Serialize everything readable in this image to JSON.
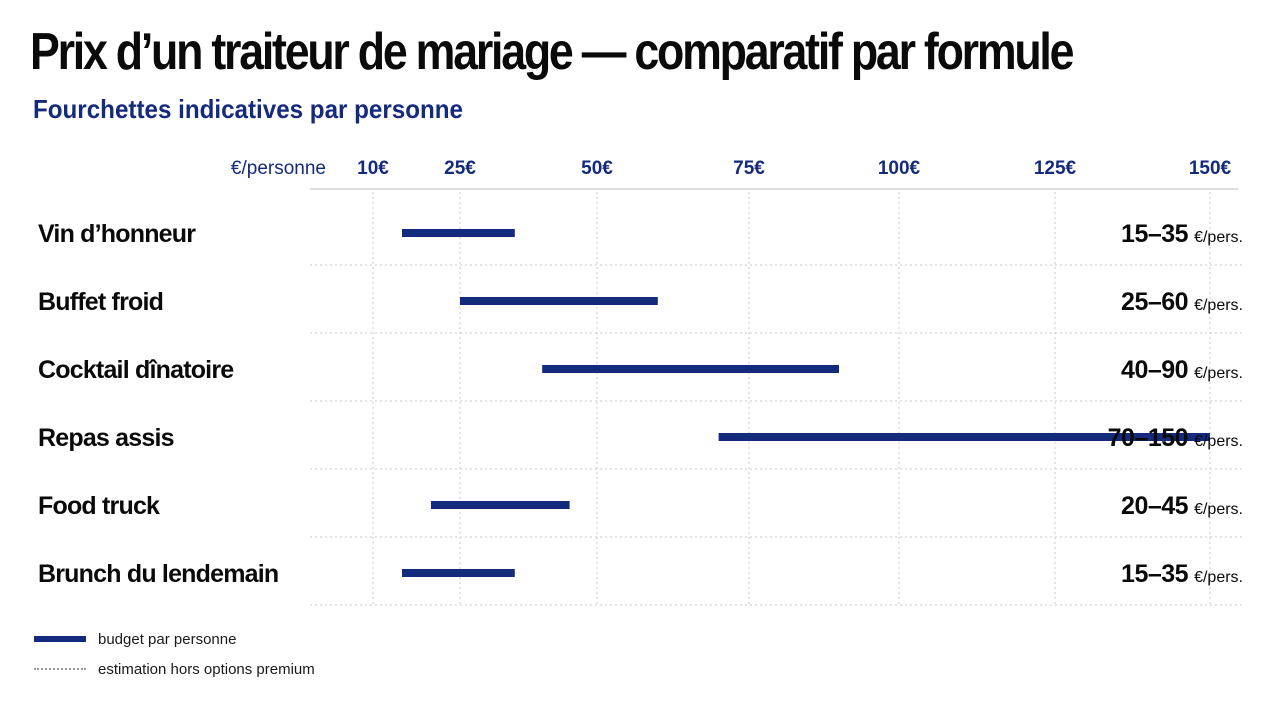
{
  "title": "Prix d’un traiteur de mariage — comparatif par formule",
  "subtitle": "Fourchettes indicatives par personne",
  "colors": {
    "bar": "#142a7c",
    "axis_text": "#142a7c",
    "grid": "#c9c9c9"
  },
  "chart_data": {
    "type": "bar",
    "orientation": "horizontal-range",
    "title": "Prix d’un traiteur de mariage — comparatif par formule",
    "subtitle": "Fourchettes indicatives par personne",
    "axis_unit_label": "€/personne",
    "ticks": [
      {
        "value": 10,
        "label": "10€"
      },
      {
        "value": 25,
        "label": "25€"
      },
      {
        "value": 50,
        "label": "50€"
      },
      {
        "value": 75,
        "label": "75€"
      },
      {
        "value": 100,
        "label": "100€"
      },
      {
        "value": 125,
        "label": "125€"
      },
      {
        "value": 150,
        "label": "150€"
      }
    ],
    "xlim": [
      10,
      150
    ],
    "grid": true,
    "legend_position": "bottom-left",
    "unit_suffix": "€/pers.",
    "categories": [
      "Vin d’honneur",
      "Buffet froid",
      "Cocktail dînatoire",
      "Repas assis",
      "Food truck",
      "Brunch du lendemain"
    ],
    "ranges": [
      {
        "low": 15,
        "high": 35,
        "label": "15–35"
      },
      {
        "low": 25,
        "high": 60,
        "label": "25–60"
      },
      {
        "low": 40,
        "high": 90,
        "label": "40–90"
      },
      {
        "low": 70,
        "high": 150,
        "label": "70–150"
      },
      {
        "low": 20,
        "high": 45,
        "label": "20–45"
      },
      {
        "low": 15,
        "high": 35,
        "label": "15–35"
      }
    ]
  },
  "legend": {
    "budget": "budget par personne",
    "estimate": "estimation hors options premium"
  }
}
